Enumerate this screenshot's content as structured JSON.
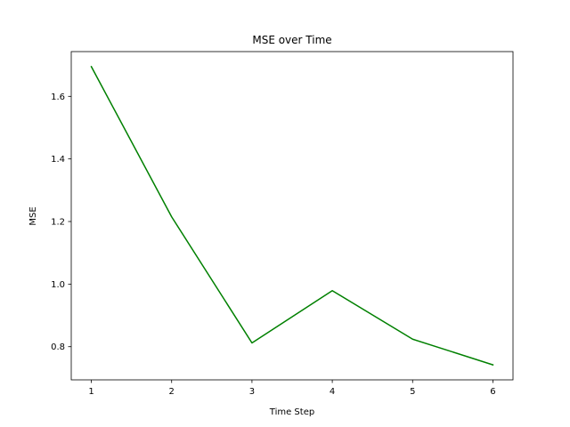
{
  "chart_data": {
    "type": "line",
    "title": "MSE over Time",
    "xlabel": "Time Step",
    "ylabel": "MSE",
    "x": [
      1,
      2,
      3,
      4,
      5,
      6
    ],
    "series": [
      {
        "values": [
          1.695,
          1.215,
          0.812,
          0.979,
          0.824,
          0.742
        ],
        "color": "#008000"
      }
    ],
    "xlim": [
      0.75,
      6.25
    ],
    "ylim": [
      0.694,
      1.743
    ],
    "xticks": [
      1,
      2,
      3,
      4,
      5,
      6
    ],
    "yticks": [
      0.8,
      1.0,
      1.2,
      1.4,
      1.6
    ],
    "ytick_labels": [
      "0.8",
      "1.0",
      "1.2",
      "1.4",
      "1.6"
    ],
    "grid": false,
    "legend": "none"
  }
}
